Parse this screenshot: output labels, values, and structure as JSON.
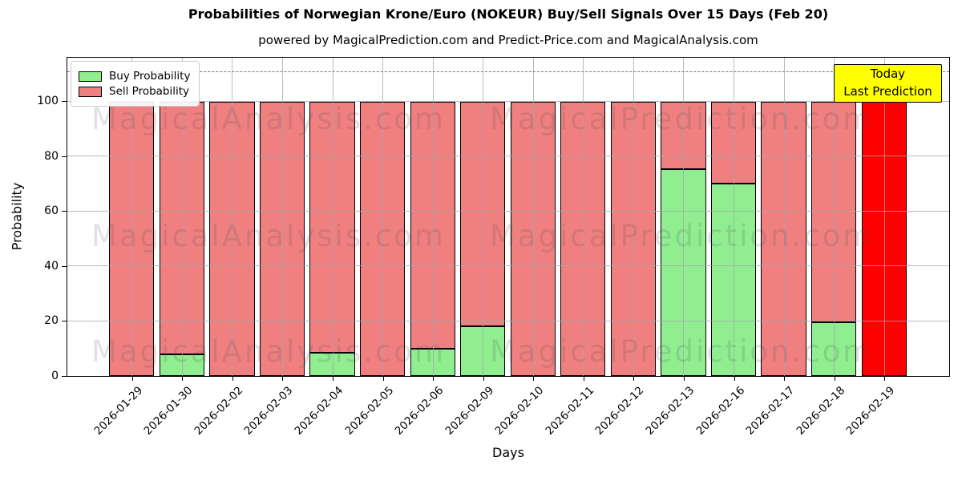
{
  "chart_data": {
    "type": "bar",
    "stacked": true,
    "title": "Probabilities of Norwegian Krone/Euro (NOKEUR) Buy/Sell Signals Over 15 Days (Feb 20)",
    "subtitle": "powered by MagicalPrediction.com and Predict-Price.com and MagicalAnalysis.com",
    "xlabel": "Days",
    "ylabel": "Probability",
    "categories": [
      "2026-01-29",
      "2026-01-30",
      "2026-02-02",
      "2026-02-03",
      "2026-02-04",
      "2026-02-05",
      "2026-02-06",
      "2026-02-09",
      "2026-02-10",
      "2026-02-11",
      "2026-02-12",
      "2026-02-13",
      "2026-02-16",
      "2026-02-17",
      "2026-02-18",
      "2026-02-19"
    ],
    "series": [
      {
        "name": "Buy Probability",
        "color": "#90ee90",
        "values": [
          0,
          8,
          0,
          0,
          8.5,
          0,
          10,
          18,
          0,
          0,
          0,
          75.5,
          70,
          0,
          19.5,
          0
        ]
      },
      {
        "name": "Sell Probability",
        "color": "#f08080",
        "values": [
          100,
          92,
          100,
          100,
          91.5,
          100,
          90,
          82,
          100,
          100,
          100,
          24.5,
          30,
          100,
          80.5,
          100
        ]
      }
    ],
    "highlight_bar": {
      "index": 15,
      "color": "#ff0000",
      "meaning": "Today / Last Prediction"
    },
    "yticks": [
      0,
      20,
      40,
      60,
      80,
      100
    ],
    "ylim": [
      0,
      115.7
    ],
    "dashed_line_y": 110.7,
    "grid": true,
    "legend_position": "upper left",
    "bar_edge_color": "#000000"
  },
  "legend": {
    "items": [
      {
        "label": "Buy Probability",
        "color": "#90ee90"
      },
      {
        "label": "Sell Probability",
        "color": "#f08080"
      }
    ]
  },
  "annotation": {
    "line1": "Today",
    "line2": "Last Prediction",
    "bg_color": "#ffff00"
  },
  "watermark": {
    "left_text": "MagicalAnalysis.com",
    "right_text": "MagicalPrediction.com"
  }
}
